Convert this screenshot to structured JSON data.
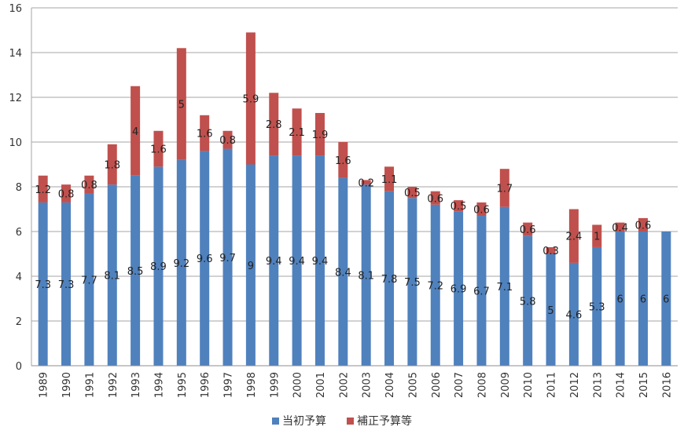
{
  "chart_data": {
    "type": "bar",
    "stacked": true,
    "categories": [
      "1989",
      "1990",
      "1991",
      "1992",
      "1993",
      "1994",
      "1995",
      "1996",
      "1997",
      "1998",
      "1999",
      "2000",
      "2001",
      "2002",
      "2003",
      "2004",
      "2005",
      "2006",
      "2007",
      "2008",
      "2009",
      "2010",
      "2011",
      "2012",
      "2013",
      "2014",
      "2015",
      "2016"
    ],
    "series": [
      {
        "name": "当初予算",
        "color": "#4F81BD",
        "values": [
          7.3,
          7.3,
          7.7,
          8.1,
          8.5,
          8.9,
          9.2,
          9.6,
          9.7,
          9,
          9.4,
          9.4,
          9.4,
          8.4,
          8.1,
          7.8,
          7.5,
          7.2,
          6.9,
          6.7,
          7.1,
          5.8,
          5,
          4.6,
          5.3,
          6,
          6,
          6
        ]
      },
      {
        "name": "補正予算等",
        "color": "#C0504D",
        "values": [
          1.2,
          0.8,
          0.8,
          1.8,
          4,
          1.6,
          5,
          1.6,
          0.8,
          5.9,
          2.8,
          2.1,
          1.9,
          1.6,
          0.2,
          1.1,
          0.5,
          0.6,
          0.5,
          0.6,
          1.7,
          0.6,
          0.3,
          2.4,
          1,
          0.4,
          0.6,
          null
        ]
      }
    ],
    "ylim": [
      0,
      16
    ],
    "yticks": [
      0,
      2,
      4,
      6,
      8,
      10,
      12,
      14,
      16
    ],
    "grid": true,
    "legend_position": "bottom"
  }
}
